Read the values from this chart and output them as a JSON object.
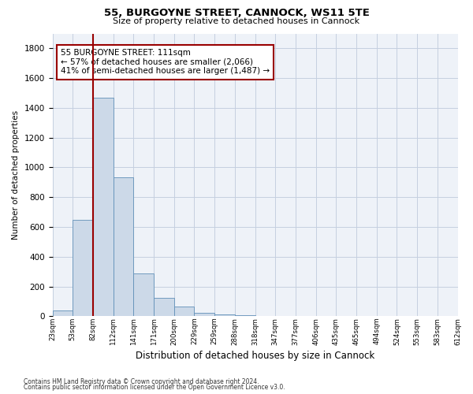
{
  "title1": "55, BURGOYNE STREET, CANNOCK, WS11 5TE",
  "title2": "Size of property relative to detached houses in Cannock",
  "xlabel": "Distribution of detached houses by size in Cannock",
  "ylabel": "Number of detached properties",
  "bar_color": "#ccd9e8",
  "bar_edge_color": "#6090b8",
  "grid_color": "#c5cfe0",
  "background_color": "#eef2f8",
  "vline_x": 2,
  "vline_color": "#990000",
  "annotation_text": "55 BURGOYNE STREET: 111sqm\n← 57% of detached houses are smaller (2,066)\n41% of semi-detached houses are larger (1,487) →",
  "annotation_box_color": "#990000",
  "bar_heights": [
    38,
    650,
    1470,
    935,
    290,
    125,
    65,
    25,
    12,
    8,
    2,
    0,
    0,
    0,
    0,
    0,
    0,
    0,
    0,
    0
  ],
  "tick_labels": [
    "23sqm",
    "53sqm",
    "82sqm",
    "112sqm",
    "141sqm",
    "171sqm",
    "200sqm",
    "229sqm",
    "259sqm",
    "288sqm",
    "318sqm",
    "347sqm",
    "377sqm",
    "406sqm",
    "435sqm",
    "465sqm",
    "494sqm",
    "524sqm",
    "553sqm",
    "583sqm",
    "612sqm"
  ],
  "ylim": [
    0,
    1900
  ],
  "yticks": [
    0,
    200,
    400,
    600,
    800,
    1000,
    1200,
    1400,
    1600,
    1800
  ],
  "footer1": "Contains HM Land Registry data © Crown copyright and database right 2024.",
  "footer2": "Contains public sector information licensed under the Open Government Licence v3.0."
}
